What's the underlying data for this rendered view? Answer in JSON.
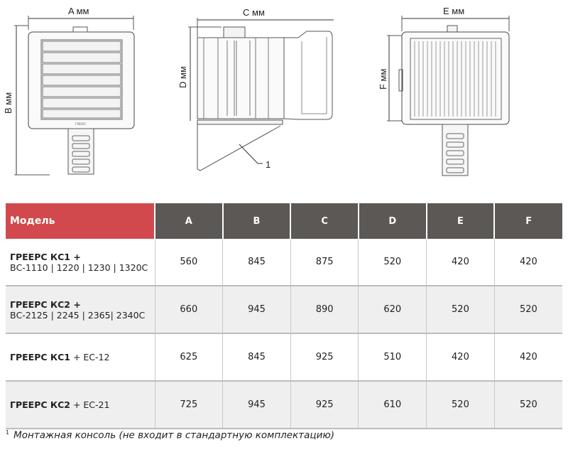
{
  "drawings": {
    "front": {
      "width_label": "A мм",
      "height_label": "B мм",
      "logo_text": "ГРЕЕРС"
    },
    "side": {
      "width_label": "C мм",
      "height_label": "D мм",
      "callout": "1"
    },
    "top": {
      "width_label": "E мм",
      "height_label": "F мм"
    }
  },
  "table": {
    "headers": [
      "Модель",
      "A",
      "B",
      "C",
      "D",
      "E",
      "F"
    ],
    "rows": [
      {
        "model_bold": "ГРЕЕРС КС1 +",
        "model_rest": "ВС-1110 | 1220 | 1230 | 1320С",
        "two_line": true,
        "values": [
          "560",
          "845",
          "875",
          "520",
          "420",
          "420"
        ]
      },
      {
        "model_bold": "ГРЕЕРС КС2 +",
        "model_rest": "ВС-2125 | 2245 | 2365| 2340С",
        "two_line": true,
        "values": [
          "660",
          "945",
          "890",
          "620",
          "520",
          "520"
        ]
      },
      {
        "model_bold": "ГРЕЕРС КС1",
        "model_rest": " + ЕС-12",
        "two_line": false,
        "values": [
          "625",
          "845",
          "925",
          "510",
          "420",
          "420"
        ]
      },
      {
        "model_bold": "ГРЕЕРС КС2",
        "model_rest": " + ЕС-21",
        "two_line": false,
        "values": [
          "725",
          "945",
          "925",
          "610",
          "520",
          "520"
        ]
      }
    ]
  },
  "footnote": {
    "marker": "1",
    "text": "Монтажная консоль (не входит в стандартную комплектацию)"
  },
  "colors": {
    "model_header": "#d1494d",
    "dim_header": "#5b5856",
    "alt_row": "#efefef"
  }
}
